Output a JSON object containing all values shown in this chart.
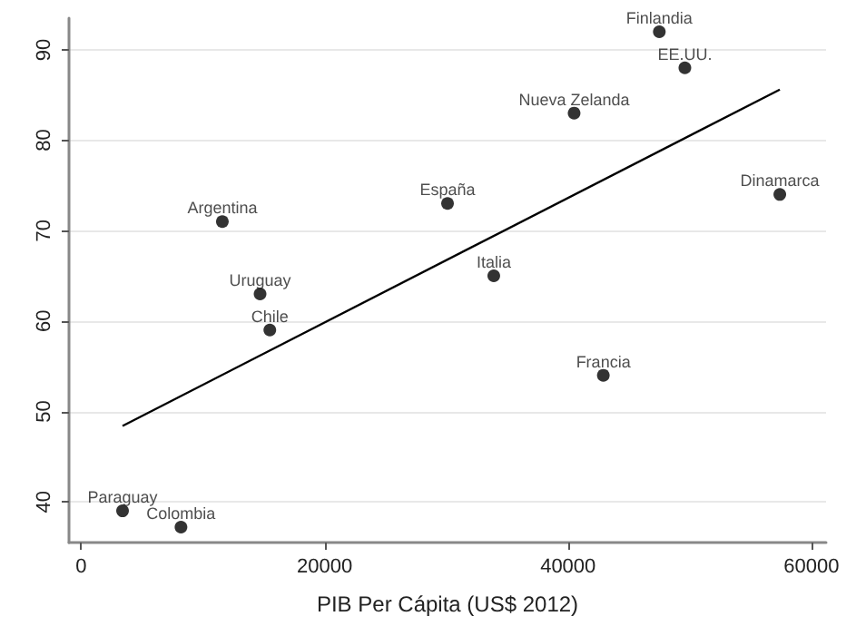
{
  "chart_data": {
    "type": "scatter",
    "xlabel": "PIB Per Cápita (US$ 2012)",
    "xlim": [
      -1000,
      61200
    ],
    "xticks": [
      0,
      20000,
      40000,
      60000
    ],
    "ylim": [
      35.5,
      93.5
    ],
    "yticks": [
      40,
      50,
      60,
      70,
      80,
      90
    ],
    "grid": "y",
    "marker": "circle",
    "series": [
      {
        "color": "#000000",
        "x": [
          3400,
          8200,
          11600,
          14700,
          15500,
          30100,
          33900,
          40500,
          47500,
          49600,
          42900,
          57400
        ],
        "values": [
          39,
          37.2,
          71,
          63,
          59,
          73,
          65,
          83,
          92,
          88,
          54,
          74
        ]
      },
      {
        "type": "line",
        "color": "#000000",
        "marker": "none",
        "line_style": "solid",
        "x": [
          3400,
          57400
        ],
        "values": [
          48.4,
          85.6
        ]
      }
    ],
    "annotations": [
      {
        "text": "Paraguay",
        "x": 3400,
        "y": 39
      },
      {
        "text": "Colombia",
        "x": 8200,
        "y": 37.2
      },
      {
        "text": "Argentina",
        "x": 11600,
        "y": 71
      },
      {
        "text": "Uruguay",
        "x": 14700,
        "y": 63
      },
      {
        "text": "Chile",
        "x": 15500,
        "y": 59
      },
      {
        "text": "España",
        "x": 30100,
        "y": 73
      },
      {
        "text": "Italia",
        "x": 33900,
        "y": 65
      },
      {
        "text": "Nueva Zelanda",
        "x": 40500,
        "y": 83
      },
      {
        "text": "Finlandia",
        "x": 47500,
        "y": 92
      },
      {
        "text": "EE.UU.",
        "x": 49600,
        "y": 88
      },
      {
        "text": "Francia",
        "x": 42900,
        "y": 54
      },
      {
        "text": "Dinamarca",
        "x": 57400,
        "y": 74
      }
    ]
  }
}
